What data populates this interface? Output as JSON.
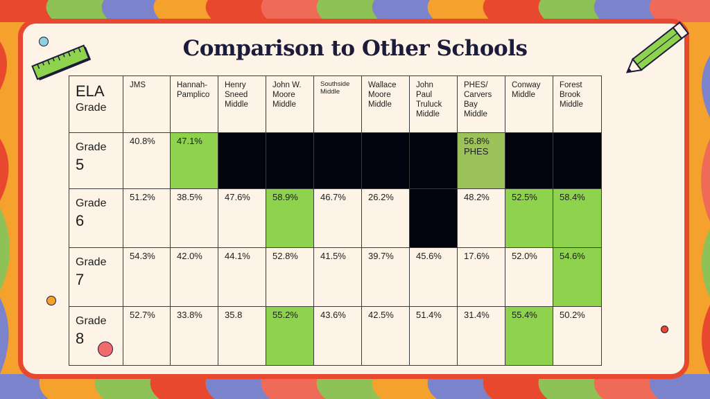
{
  "title": "Comparison to Other Schools",
  "table": {
    "corner": {
      "line1": "ELA",
      "line2": "Grade"
    },
    "columns": [
      "JMS",
      "Hannah-\nPamplico",
      "Henry\nSneed\nMiddle",
      "John W.\nMoore\nMiddle",
      "Southside\nMiddle",
      "Wallace\nMoore\nMiddle",
      "John\nPaul\nTruluck\nMiddle",
      "PHES/\nCarvers\nBay\nMiddle",
      "Conway\nMiddle",
      "Forest\nBrook\nMiddle"
    ],
    "rows": [
      {
        "label_word": "Grade",
        "label_num": "5",
        "cells": [
          "40.8%",
          "47.1%",
          "",
          "",
          "",
          "",
          "",
          "56.8%\nPHES",
          "",
          ""
        ],
        "fills": [
          "",
          "green",
          "black",
          "black",
          "black",
          "black",
          "black",
          "olive",
          "black",
          "black"
        ]
      },
      {
        "label_word": "Grade",
        "label_num": "6",
        "cells": [
          "51.2%",
          "38.5%",
          "47.6%",
          "58.9%",
          "46.7%",
          "26.2%",
          "",
          "48.2%",
          "52.5%",
          "58.4%"
        ],
        "fills": [
          "",
          "",
          "",
          "green",
          "",
          "",
          "black",
          "",
          "green",
          "green"
        ]
      },
      {
        "label_word": "Grade",
        "label_num": "7",
        "cells": [
          "54.3%",
          "42.0%",
          "44.1%",
          "52.8%",
          "41.5%",
          "39.7%",
          "45.6%",
          "17.6%",
          "52.0%",
          "54.6%"
        ],
        "fills": [
          "",
          "",
          "",
          "",
          "",
          "",
          "",
          "",
          "",
          "green"
        ]
      },
      {
        "label_word": "Grade",
        "label_num": "8",
        "cells": [
          "52.7%",
          "33.8%",
          "35.8",
          "55.2%",
          "43.6%",
          "42.5%",
          "51.4%",
          "31.4%",
          "55.4%",
          "50.2%"
        ],
        "fills": [
          "",
          "",
          "",
          "green",
          "",
          "",
          "",
          "",
          "green",
          ""
        ]
      }
    ]
  },
  "colors": {
    "card_border": "#e8492e",
    "card_bg": "#fdf3e6",
    "highlight_green": "#8ed24e",
    "highlight_olive": "#9cc25a",
    "blocked_black": "#04040f",
    "title": "#1c1b3a"
  },
  "decorations": {
    "ruler_icon": "ruler-icon",
    "pencil_icon": "pencil-icon"
  }
}
